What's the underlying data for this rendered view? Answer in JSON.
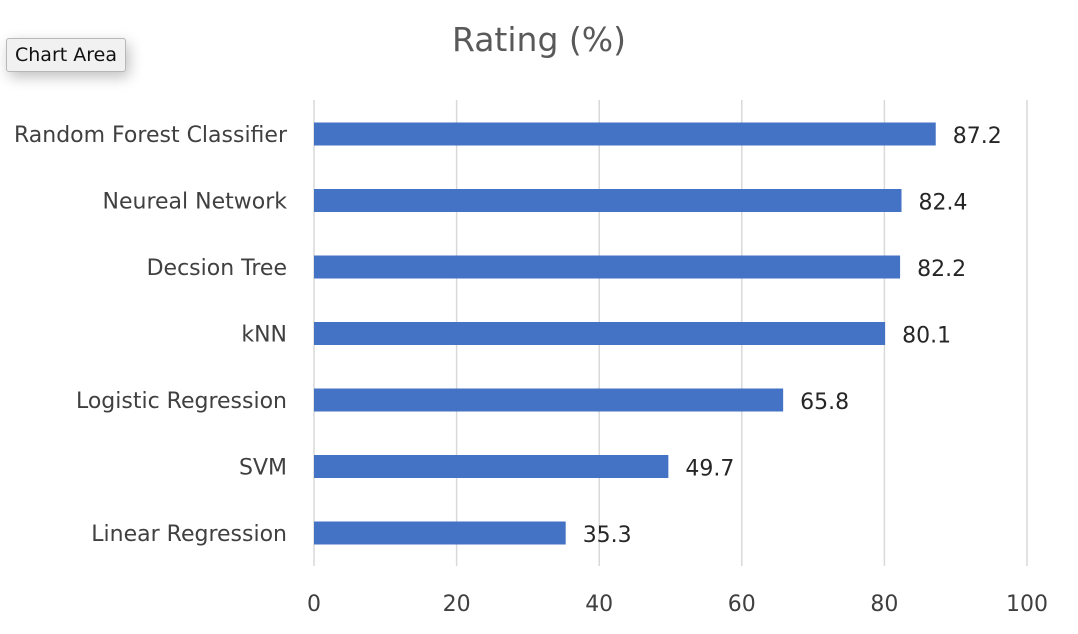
{
  "ui": {
    "chart_area_tooltip": "Chart Area"
  },
  "chart_data": {
    "type": "bar",
    "orientation": "horizontal",
    "title": "Rating (%)",
    "categories": [
      "Random Forest Classifier",
      "Neureal Network",
      "Decsion Tree",
      "kNN",
      "Logistic Regression",
      "SVM",
      "Linear Regression"
    ],
    "values": [
      87.2,
      82.4,
      82.2,
      80.1,
      65.8,
      49.7,
      35.3
    ],
    "data_labels": [
      "87.2",
      "82.4",
      "82.2",
      "80.1",
      "65.8",
      "49.7",
      "35.3"
    ],
    "xlim": [
      0,
      100
    ],
    "x_ticks": [
      0,
      20,
      40,
      60,
      80,
      100
    ],
    "x_tick_labels": [
      "0",
      "20",
      "40",
      "60",
      "80",
      "100"
    ],
    "xlabel": "",
    "ylabel": "",
    "grid": "vertical",
    "legend": "none",
    "bar_color": "#4472C4"
  }
}
